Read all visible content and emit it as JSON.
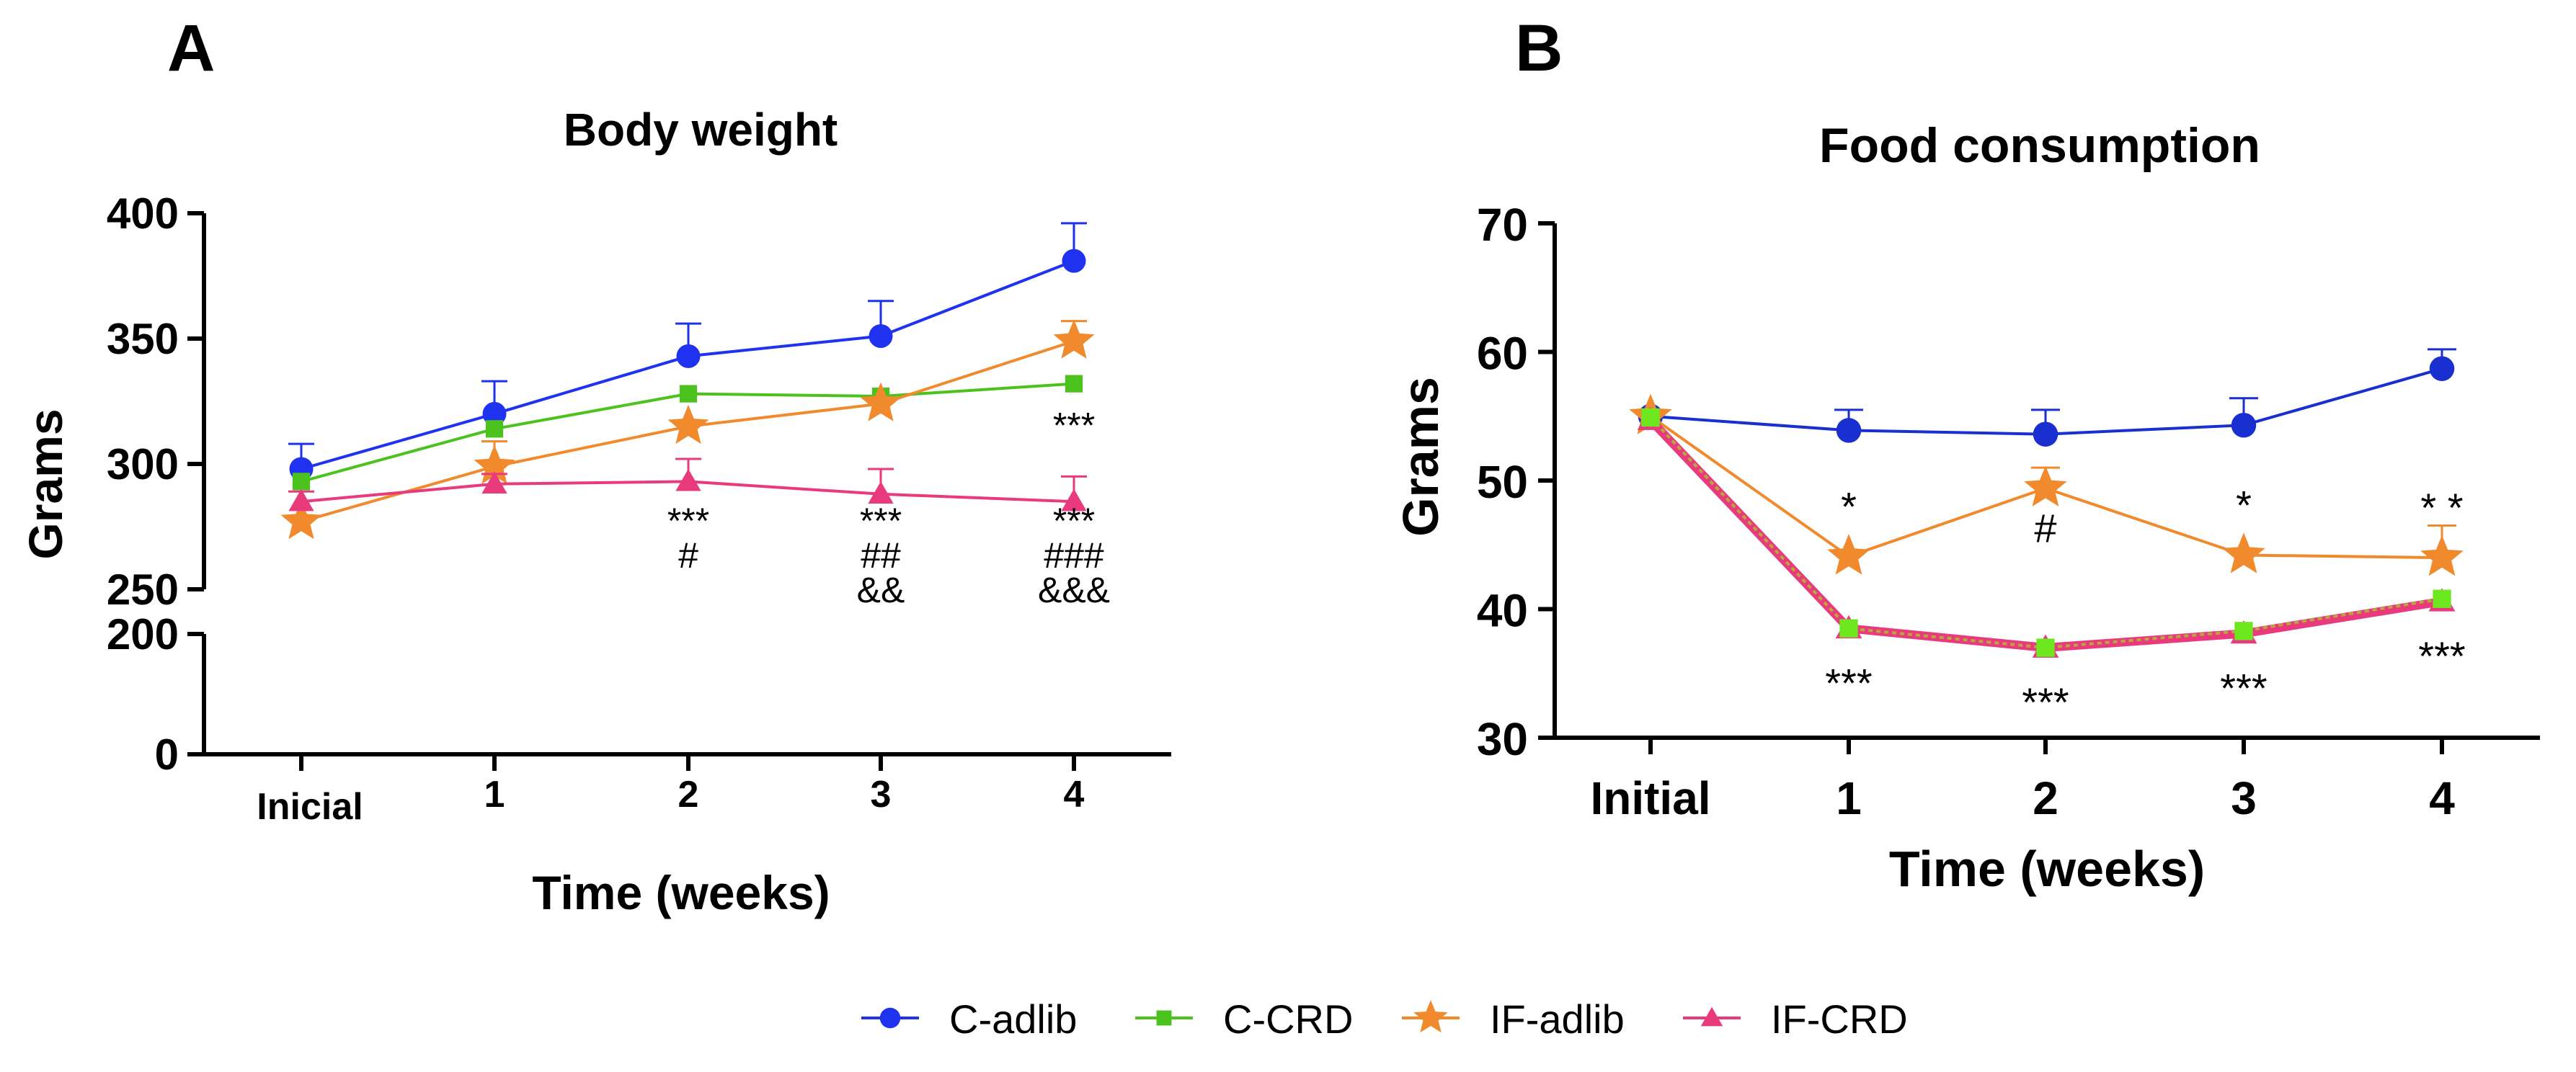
{
  "colors": {
    "c_adlib": "#1f32f0",
    "c_adlib_b": "#1a2fcf",
    "c_crd": "#4cc21e",
    "c_crd_b": "#6ee81e",
    "if_adlib": "#f08a2c",
    "if_crd": "#e83a7c",
    "axis": "#000000"
  },
  "panels": {
    "a": {
      "letter": "A"
    },
    "b": {
      "letter": "B"
    }
  },
  "legend": [
    {
      "key": "c_adlib",
      "label": "C-adlib",
      "marker": "circle"
    },
    {
      "key": "c_crd",
      "label": "C-CRD",
      "marker": "square"
    },
    {
      "key": "if_adlib",
      "label": "IF-adlib",
      "marker": "star"
    },
    {
      "key": "if_crd",
      "label": "IF-CRD",
      "marker": "triangle"
    }
  ],
  "chart_data": [
    {
      "panel": "A",
      "type": "line",
      "title": "Body weight",
      "xlabel": "Time (weeks)",
      "ylabel": "Grams",
      "categories": [
        "Inicial",
        "1",
        "2",
        "3",
        "4"
      ],
      "y_axis": {
        "broken": true,
        "lower_segment": {
          "ylim": [
            0,
            200
          ],
          "ticks": [
            "0",
            "200"
          ]
        },
        "upper_segment": {
          "ylim": [
            250,
            400
          ],
          "ticks": [
            "250",
            "300",
            "350",
            "400"
          ]
        }
      },
      "series": [
        {
          "name": "C-adlib",
          "key": "c_adlib",
          "marker": "circle",
          "values": [
            298,
            320,
            343,
            351,
            381
          ],
          "errors": [
            10,
            13,
            13,
            14,
            15
          ]
        },
        {
          "name": "C-CRD",
          "key": "c_crd",
          "marker": "square",
          "values": [
            293,
            314,
            328,
            327,
            332
          ],
          "errors": [
            0,
            0,
            0,
            0,
            0
          ]
        },
        {
          "name": "IF-adlib",
          "key": "if_adlib",
          "marker": "star",
          "values": [
            277,
            299,
            315,
            324,
            349
          ],
          "errors": [
            0,
            10,
            0,
            0,
            8
          ]
        },
        {
          "name": "IF-CRD",
          "key": "if_crd",
          "marker": "triangle",
          "values": [
            285,
            292,
            293,
            288,
            285
          ],
          "errors": [
            4,
            4,
            9,
            10,
            10
          ]
        }
      ],
      "annotations": [
        {
          "category": "2",
          "lines": [
            "***",
            "#"
          ]
        },
        {
          "category": "3",
          "lines": [
            "***",
            "##",
            "&&"
          ]
        },
        {
          "category": "4",
          "lines": [
            "***",
            "###",
            "&&&"
          ]
        },
        {
          "category": "4",
          "lines": [
            "***"
          ],
          "position": "above"
        }
      ]
    },
    {
      "panel": "B",
      "type": "line",
      "title": "Food consumption",
      "xlabel": "Time (weeks)",
      "ylabel": "Grams",
      "categories": [
        "Initial",
        "1",
        "2",
        "3",
        "4"
      ],
      "ylim": [
        30,
        70
      ],
      "yticks": [
        "30",
        "40",
        "50",
        "60",
        "70"
      ],
      "series": [
        {
          "name": "C-adlib",
          "key": "c_adlib_b",
          "marker": "circle",
          "values": [
            55,
            53.9,
            53.6,
            54.3,
            58.7
          ],
          "errors": [
            0,
            1.6,
            1.9,
            2.1,
            1.5
          ]
        },
        {
          "name": "IF-adlib",
          "key": "if_adlib",
          "marker": "star",
          "values": [
            55,
            44.1,
            49.4,
            44.2,
            44
          ],
          "errors": [
            0,
            0,
            1.6,
            0,
            2.5
          ]
        },
        {
          "name": "IF-CRD",
          "key": "if_crd",
          "marker": "triangle",
          "values": [
            54.7,
            38.5,
            37,
            38.1,
            40.6
          ],
          "errors": [
            0,
            0,
            0,
            0,
            0
          ]
        },
        {
          "name": "C-CRD",
          "key": "c_crd_b",
          "marker": "square",
          "values": [
            54.9,
            38.5,
            37,
            38.3,
            40.8
          ],
          "errors": [
            0,
            0,
            0,
            0,
            0
          ]
        }
      ],
      "annotations": [
        {
          "category": "1",
          "text": "*",
          "position": "above"
        },
        {
          "category": "2",
          "text": "#",
          "position": "above"
        },
        {
          "category": "3",
          "text": "*",
          "position": "above"
        },
        {
          "category": "4",
          "text": "* *",
          "position": "above"
        },
        {
          "category": "1",
          "text": "***",
          "position": "below"
        },
        {
          "category": "2",
          "text": "***",
          "position": "below"
        },
        {
          "category": "3",
          "text": "***",
          "position": "below"
        },
        {
          "category": "4",
          "text": "***",
          "position": "below"
        }
      ]
    }
  ]
}
